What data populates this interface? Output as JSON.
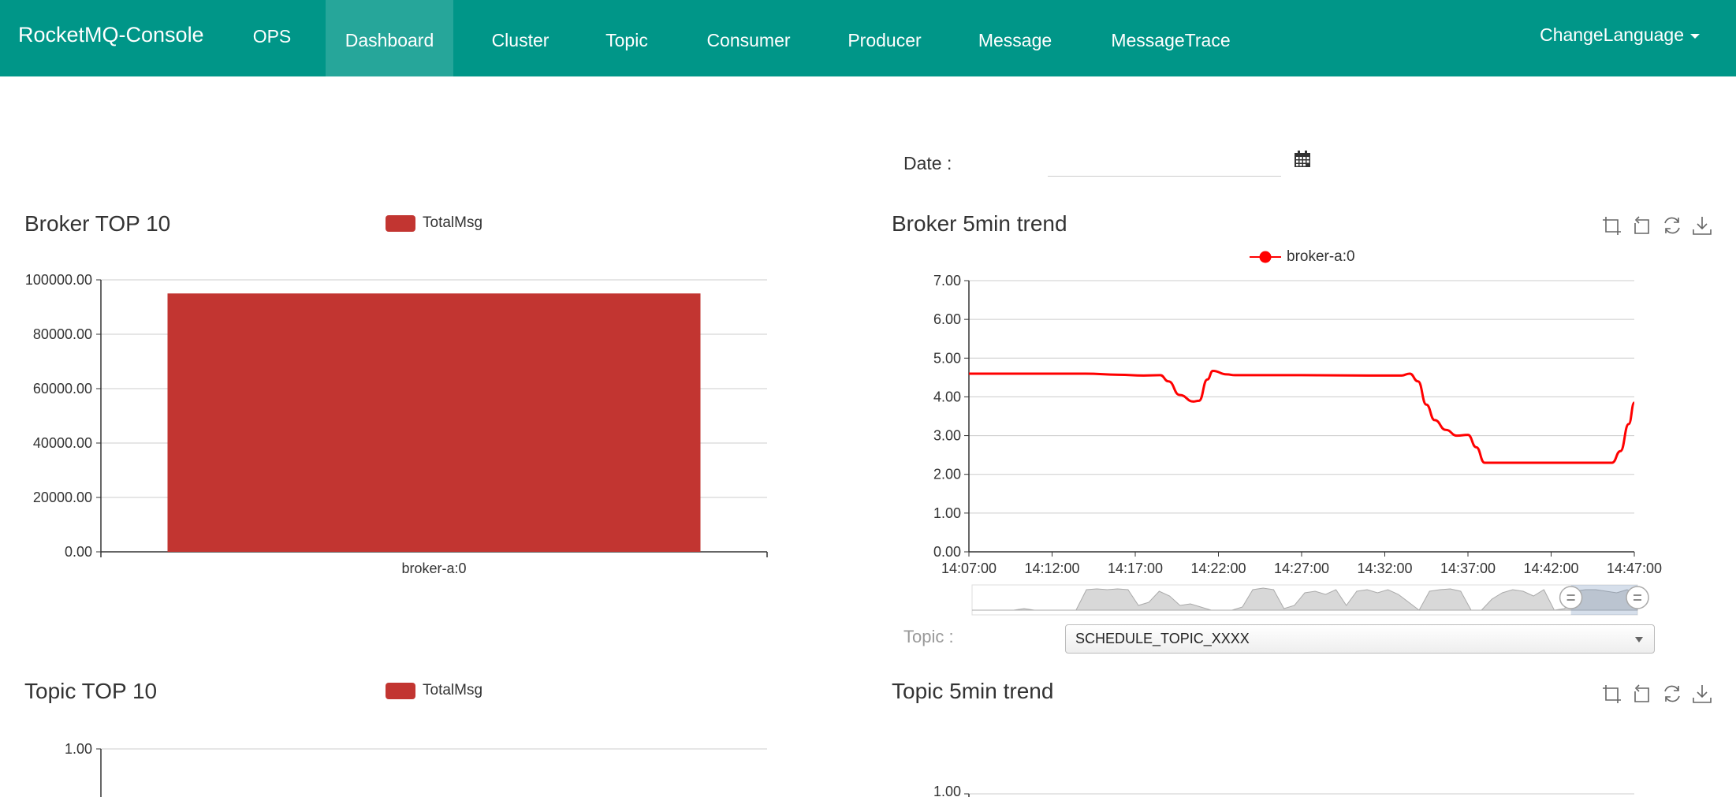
{
  "navbar": {
    "brand": "RocketMQ-Console",
    "items": [
      {
        "label": "OPS"
      },
      {
        "label": "Dashboard"
      },
      {
        "label": "Cluster"
      },
      {
        "label": "Topic"
      },
      {
        "label": "Consumer"
      },
      {
        "label": "Producer"
      },
      {
        "label": "Message"
      },
      {
        "label": "MessageTrace"
      }
    ],
    "active": "Dashboard",
    "language": "ChangeLanguage"
  },
  "date_filter": {
    "label": "Date :",
    "value": ""
  },
  "topic_filter": {
    "label": "Topic :",
    "selected": "SCHEDULE_TOPIC_XXXX"
  },
  "colors": {
    "navbar": "#009688",
    "bar": "#c23531",
    "line": "#ff0000"
  },
  "icons": {
    "calendar": "calendar-icon",
    "toolbox": [
      "zoom-select-icon",
      "zoom-reset-icon",
      "refresh-icon",
      "download-icon"
    ]
  },
  "chart_data": [
    {
      "id": "broker_top10",
      "type": "bar",
      "title": "Broker TOP 10",
      "legend": [
        "TotalMsg"
      ],
      "categories": [
        "broker-a:0"
      ],
      "series": [
        {
          "name": "TotalMsg",
          "values": [
            95000
          ]
        }
      ],
      "ylim": [
        0,
        100000
      ],
      "yticks": [
        "0.00",
        "20000.00",
        "40000.00",
        "60000.00",
        "80000.00",
        "100000.00"
      ],
      "grid": true
    },
    {
      "id": "broker_5min_trend",
      "type": "line",
      "title": "Broker 5min trend",
      "legend": [
        "broker-a:0"
      ],
      "ylim": [
        0,
        7
      ],
      "yticks": [
        "0.00",
        "1.00",
        "2.00",
        "3.00",
        "4.00",
        "5.00",
        "6.00",
        "7.00"
      ],
      "xticks": [
        "14:07:00",
        "14:12:00",
        "14:17:00",
        "14:22:00",
        "14:27:00",
        "14:32:00",
        "14:37:00",
        "14:42:00",
        "14:47:00"
      ],
      "series": [
        {
          "name": "broker-a:0",
          "points": [
            [
              "14:07:00",
              4.6
            ],
            [
              "14:12:00",
              4.6
            ],
            [
              "14:14:00",
              4.6
            ],
            [
              "14:16:00",
              4.57
            ],
            [
              "14:17:30",
              4.55
            ],
            [
              "14:18:30",
              4.56
            ],
            [
              "14:19:00",
              4.4
            ],
            [
              "14:19:40",
              4.05
            ],
            [
              "14:20:30",
              3.88
            ],
            [
              "14:20:50",
              3.9
            ],
            [
              "14:21:20",
              4.45
            ],
            [
              "14:21:40",
              4.67
            ],
            [
              "14:22:30",
              4.58
            ],
            [
              "14:23:00",
              4.56
            ],
            [
              "14:27:00",
              4.56
            ],
            [
              "14:31:00",
              4.55
            ],
            [
              "14:33:00",
              4.55
            ],
            [
              "14:33:30",
              4.6
            ],
            [
              "14:34:00",
              4.4
            ],
            [
              "14:34:30",
              3.8
            ],
            [
              "14:35:00",
              3.4
            ],
            [
              "14:35:40",
              3.15
            ],
            [
              "14:36:20",
              3.0
            ],
            [
              "14:37:00",
              3.02
            ],
            [
              "14:37:30",
              2.7
            ],
            [
              "14:38:00",
              2.3
            ],
            [
              "14:42:00",
              2.3
            ],
            [
              "14:45:40",
              2.3
            ],
            [
              "14:46:10",
              2.6
            ],
            [
              "14:46:40",
              3.3
            ],
            [
              "14:47:00",
              3.85
            ]
          ]
        }
      ],
      "grid": true,
      "data_zoom": {
        "start": 0.9,
        "end": 1.0
      }
    },
    {
      "id": "topic_top10",
      "type": "bar",
      "title": "Topic TOP 10",
      "legend": [
        "TotalMsg"
      ],
      "categories": [],
      "series": [
        {
          "name": "TotalMsg",
          "values": []
        }
      ],
      "ylim": [
        0,
        1
      ],
      "yticks": [
        "1.00"
      ],
      "grid": true
    },
    {
      "id": "topic_5min_trend",
      "type": "line",
      "title": "Topic 5min trend",
      "ylim": [
        0,
        1
      ],
      "yticks": [
        "1.00"
      ],
      "series": [],
      "grid": true
    }
  ]
}
